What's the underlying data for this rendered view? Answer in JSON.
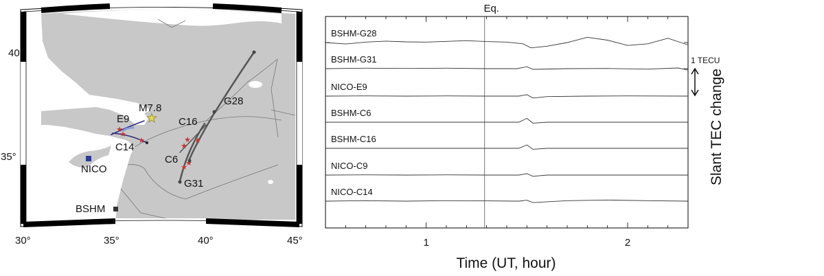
{
  "map": {
    "lon_ticks": [
      "30°",
      "35°",
      "40°",
      "45°"
    ],
    "lat_ticks": [
      "35°",
      "40°"
    ],
    "epicenter_label": "M7.8",
    "station_labels": [
      "NICO",
      "BSHM"
    ],
    "satellite_labels": [
      "E9",
      "C14",
      "C16",
      "C6",
      "G28",
      "G31"
    ],
    "colors": {
      "land": "#c8c8c8",
      "sea": "#ffffff",
      "border": "#777777",
      "nico": "#2b3a9a",
      "bshm": "#333333",
      "star": "#e0d84a",
      "ipp_marker": "#cc3333",
      "track_g": "#555555",
      "track_e_c": "#2a2a80"
    }
  },
  "chart_data": {
    "type": "line",
    "title": "Eq.",
    "xlabel": "Time (UT, hour)",
    "ylabel": "Slant TEC change",
    "x_ticks": [
      1,
      2
    ],
    "xlim": [
      0.5,
      2.3
    ],
    "eq_time": 1.29,
    "scale_bar_label": "1 TECU",
    "series": [
      {
        "name": "BSHM-G28",
        "points": [
          [
            0.5,
            0.0
          ],
          [
            0.6,
            -0.06
          ],
          [
            0.7,
            0.02
          ],
          [
            0.8,
            0.06
          ],
          [
            0.9,
            0.03
          ],
          [
            1.0,
            0.02
          ],
          [
            1.1,
            0.05
          ],
          [
            1.2,
            0.08
          ],
          [
            1.3,
            0.04
          ],
          [
            1.4,
            0.02
          ],
          [
            1.48,
            -0.05
          ],
          [
            1.52,
            -0.22
          ],
          [
            1.6,
            -0.15
          ],
          [
            1.7,
            0.0
          ],
          [
            1.8,
            0.22
          ],
          [
            1.9,
            0.1
          ],
          [
            2.0,
            -0.12
          ],
          [
            2.1,
            -0.05
          ],
          [
            2.2,
            0.18
          ],
          [
            2.3,
            -0.1
          ]
        ]
      },
      {
        "name": "BSHM-G31",
        "points": [
          [
            0.5,
            0.0
          ],
          [
            0.7,
            0.02
          ],
          [
            0.9,
            0.01
          ],
          [
            1.1,
            0.02
          ],
          [
            1.3,
            0.0
          ],
          [
            1.45,
            0.0
          ],
          [
            1.5,
            0.08
          ],
          [
            1.53,
            -0.03
          ],
          [
            1.7,
            0.0
          ],
          [
            1.9,
            0.01
          ],
          [
            2.1,
            -0.02
          ],
          [
            2.25,
            0.03
          ],
          [
            2.3,
            -0.06
          ]
        ]
      },
      {
        "name": "NICO-E9",
        "points": [
          [
            0.5,
            0.0
          ],
          [
            0.7,
            0.01
          ],
          [
            0.9,
            0.0
          ],
          [
            1.1,
            0.01
          ],
          [
            1.3,
            0.0
          ],
          [
            1.46,
            0.0
          ],
          [
            1.5,
            0.06
          ],
          [
            1.53,
            -0.08
          ],
          [
            1.6,
            -0.02
          ],
          [
            1.8,
            0.0
          ],
          [
            2.0,
            0.01
          ],
          [
            2.3,
            0.0
          ]
        ]
      },
      {
        "name": "BSHM-C6",
        "points": [
          [
            0.5,
            0.0
          ],
          [
            0.7,
            0.0
          ],
          [
            0.9,
            0.0
          ],
          [
            1.1,
            0.0
          ],
          [
            1.3,
            0.0
          ],
          [
            1.46,
            0.0
          ],
          [
            1.5,
            0.16
          ],
          [
            1.53,
            -0.04
          ],
          [
            1.6,
            0.0
          ],
          [
            1.8,
            0.0
          ],
          [
            2.0,
            0.0
          ],
          [
            2.3,
            0.0
          ]
        ]
      },
      {
        "name": "BSHM-C16",
        "points": [
          [
            0.5,
            0.0
          ],
          [
            0.7,
            0.0
          ],
          [
            0.9,
            0.0
          ],
          [
            1.1,
            0.0
          ],
          [
            1.3,
            0.0
          ],
          [
            1.46,
            0.0
          ],
          [
            1.5,
            0.14
          ],
          [
            1.53,
            -0.04
          ],
          [
            1.6,
            0.0
          ],
          [
            1.8,
            0.0
          ],
          [
            2.0,
            0.0
          ],
          [
            2.3,
            0.0
          ]
        ]
      },
      {
        "name": "NICO-C9",
        "points": [
          [
            0.5,
            0.0
          ],
          [
            0.7,
            0.01
          ],
          [
            0.9,
            0.0
          ],
          [
            1.1,
            0.01
          ],
          [
            1.3,
            0.0
          ],
          [
            1.46,
            0.0
          ],
          [
            1.5,
            0.06
          ],
          [
            1.53,
            -0.05
          ],
          [
            1.6,
            0.0
          ],
          [
            1.8,
            0.0
          ],
          [
            2.0,
            0.0
          ],
          [
            2.3,
            0.0
          ]
        ]
      },
      {
        "name": "NICO-C14",
        "points": [
          [
            0.5,
            0.0
          ],
          [
            0.7,
            0.02
          ],
          [
            0.9,
            0.0
          ],
          [
            1.1,
            0.02
          ],
          [
            1.3,
            0.01
          ],
          [
            1.46,
            0.0
          ],
          [
            1.5,
            0.04
          ],
          [
            1.53,
            -0.06
          ],
          [
            1.7,
            0.02
          ],
          [
            1.9,
            0.05
          ],
          [
            2.1,
            0.02
          ],
          [
            2.3,
            0.0
          ]
        ]
      }
    ]
  }
}
